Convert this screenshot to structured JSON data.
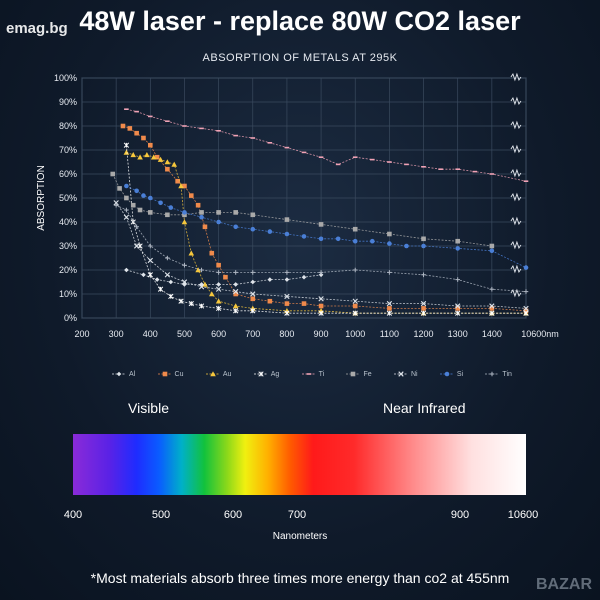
{
  "headline": "48W laser - replace 80W CO2 laser",
  "watermark_left": "emag.bg",
  "watermark_right": "BAZAR",
  "chart_data": {
    "type": "line",
    "title": "ABSORPTION OF METALS AT 295K",
    "ylabel": "ABSORPTION",
    "xlabel": "",
    "x_ticks": [
      "200",
      "300",
      "400",
      "500",
      "600",
      "700",
      "800",
      "900",
      "1000",
      "1100",
      "1200",
      "1300",
      "1400",
      "10600nm"
    ],
    "y_ticks": [
      "0%",
      "10%",
      "20%",
      "30%",
      "40%",
      "50%",
      "60%",
      "70%",
      "80%",
      "90%",
      "100%"
    ],
    "ylim": [
      0,
      100
    ],
    "grid": true,
    "legend_position": "bottom",
    "series": [
      {
        "name": "Al",
        "color": "#dfe4ea",
        "marker": "diamond",
        "x": [
          330,
          380,
          420,
          460,
          500,
          550,
          600,
          650,
          700,
          750,
          800,
          850,
          900
        ],
        "y": [
          20,
          18,
          16,
          15,
          14,
          14,
          14,
          14,
          15,
          16,
          16,
          17,
          18
        ]
      },
      {
        "name": "Cu",
        "color": "#f08a4b",
        "marker": "square",
        "x": [
          320,
          340,
          360,
          380,
          400,
          420,
          450,
          480,
          500,
          520,
          540,
          560,
          580,
          600,
          620,
          650,
          700,
          750,
          800,
          850,
          900,
          1000,
          1100,
          1200,
          1300,
          1400,
          10600
        ],
        "y": [
          80,
          79,
          77,
          75,
          72,
          67,
          62,
          57,
          55,
          51,
          47,
          38,
          27,
          22,
          17,
          10,
          8,
          7,
          6,
          6,
          5,
          5,
          4,
          4,
          4,
          4,
          3
        ]
      },
      {
        "name": "Au",
        "color": "#f6c73c",
        "marker": "triangle",
        "x": [
          330,
          350,
          370,
          390,
          410,
          430,
          450,
          470,
          490,
          500,
          520,
          540,
          560,
          580,
          600,
          650,
          700,
          800,
          900,
          1000,
          1200,
          1400,
          10600
        ],
        "y": [
          69,
          68,
          67,
          68,
          67,
          66,
          65,
          64,
          55,
          40,
          27,
          20,
          14,
          10,
          7,
          5,
          4,
          3,
          3,
          2,
          2,
          2,
          2
        ]
      },
      {
        "name": "Ag",
        "color": "#ffffff",
        "marker": "asterisk",
        "x": [
          330,
          350,
          370,
          400,
          430,
          460,
          490,
          520,
          550,
          600,
          650,
          700,
          800,
          900,
          1000,
          1100,
          1200,
          1300,
          1400,
          10600
        ],
        "y": [
          72,
          40,
          30,
          18,
          12,
          9,
          7,
          6,
          5,
          4,
          3,
          3,
          2,
          2,
          2,
          2,
          2,
          2,
          2,
          2
        ]
      },
      {
        "name": "Ti",
        "color": "#f2a3b6",
        "marker": "dash",
        "x": [
          330,
          360,
          400,
          450,
          500,
          550,
          600,
          650,
          700,
          750,
          800,
          850,
          900,
          950,
          1000,
          1050,
          1100,
          1150,
          1200,
          1250,
          1300,
          1350,
          1400,
          10600
        ],
        "y": [
          87,
          86,
          84,
          82,
          80,
          79,
          78,
          76,
          75,
          73,
          71,
          69,
          67,
          64,
          67,
          66,
          65,
          64,
          63,
          62,
          62,
          61,
          60,
          57
        ]
      },
      {
        "name": "Fe",
        "color": "#a9a9a9",
        "marker": "square",
        "x": [
          290,
          310,
          330,
          350,
          370,
          400,
          450,
          500,
          550,
          600,
          650,
          700,
          800,
          900,
          1000,
          1100,
          1200,
          1300,
          1400
        ],
        "y": [
          60,
          54,
          50,
          47,
          45,
          44,
          43,
          43,
          44,
          44,
          44,
          43,
          41,
          39,
          37,
          35,
          33,
          32,
          30
        ]
      },
      {
        "name": "Ni",
        "color": "#dfe4ea",
        "marker": "cross",
        "x": [
          300,
          330,
          360,
          400,
          450,
          500,
          550,
          600,
          650,
          700,
          800,
          900,
          1000,
          1100,
          1200,
          1300,
          1400,
          10600
        ],
        "y": [
          48,
          42,
          30,
          24,
          18,
          15,
          13,
          12,
          11,
          10,
          9,
          8,
          7,
          6,
          6,
          5,
          5,
          4
        ]
      },
      {
        "name": "Si",
        "color": "#4a7fd6",
        "marker": "circle",
        "x": [
          330,
          360,
          380,
          400,
          430,
          460,
          500,
          550,
          600,
          650,
          700,
          750,
          800,
          850,
          900,
          950,
          1000,
          1050,
          1100,
          1150,
          1200,
          1300,
          1400,
          10600
        ],
        "y": [
          55,
          53,
          51,
          50,
          48,
          46,
          44,
          42,
          40,
          38,
          37,
          36,
          35,
          34,
          33,
          33,
          32,
          32,
          31,
          30,
          30,
          29,
          28,
          21
        ]
      },
      {
        "name": "Tin",
        "color": "#b0b8c4",
        "marker": "plus",
        "x": [
          300,
          330,
          360,
          400,
          450,
          500,
          550,
          600,
          650,
          700,
          800,
          900,
          1000,
          1100,
          1200,
          1300,
          1400,
          10600
        ],
        "y": [
          47,
          45,
          38,
          30,
          25,
          22,
          20,
          19,
          19,
          19,
          19,
          19,
          20,
          19,
          18,
          16,
          12,
          11
        ]
      }
    ]
  },
  "spectrum": {
    "left_label": "Visible",
    "right_label": "Near Infrared",
    "ticks": [
      "400",
      "500",
      "600",
      "700",
      "900",
      "10600"
    ],
    "axis_label": "Nanometers"
  },
  "footer": "*Most materials absorb three times more energy than co2 at 455nm"
}
